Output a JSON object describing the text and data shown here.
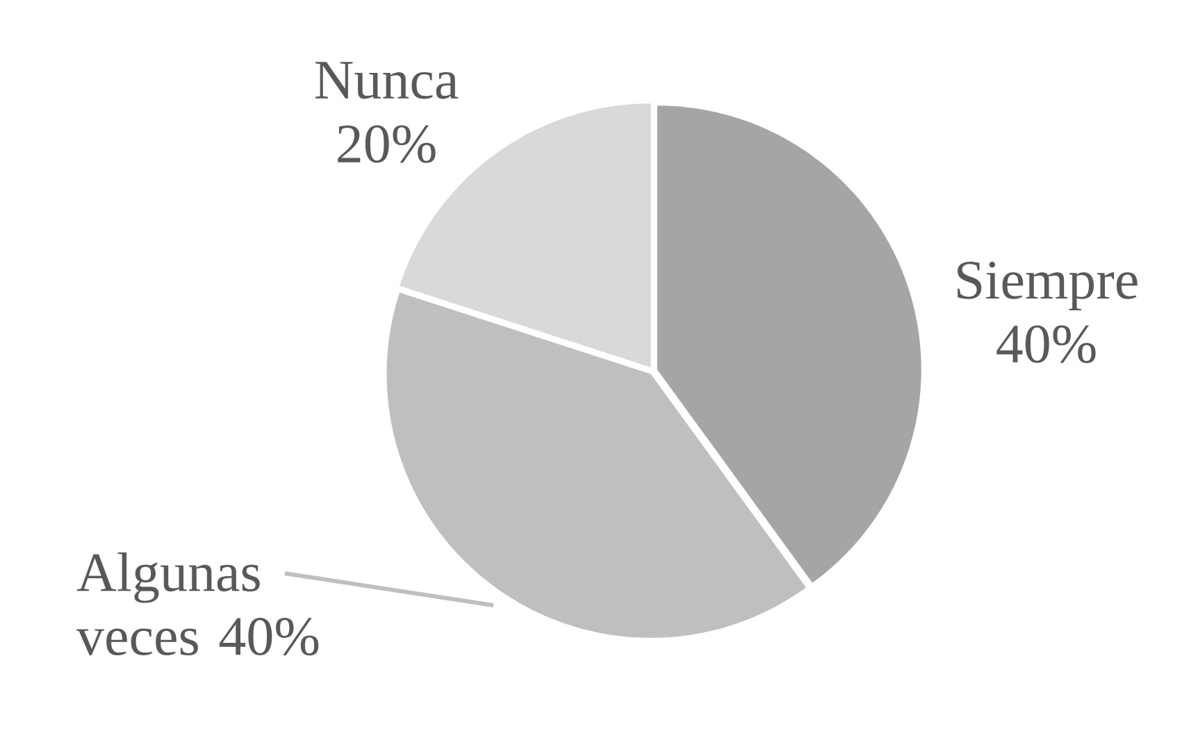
{
  "chart_data": {
    "type": "pie",
    "categories": [
      "Siempre",
      "Algunas veces",
      "Nunca"
    ],
    "values": [
      40,
      40,
      20
    ],
    "value_labels": [
      "40%",
      "40%",
      "20%"
    ],
    "colors": [
      "#a5a5a5",
      "#bfbfbf",
      "#d9d9d9"
    ]
  }
}
